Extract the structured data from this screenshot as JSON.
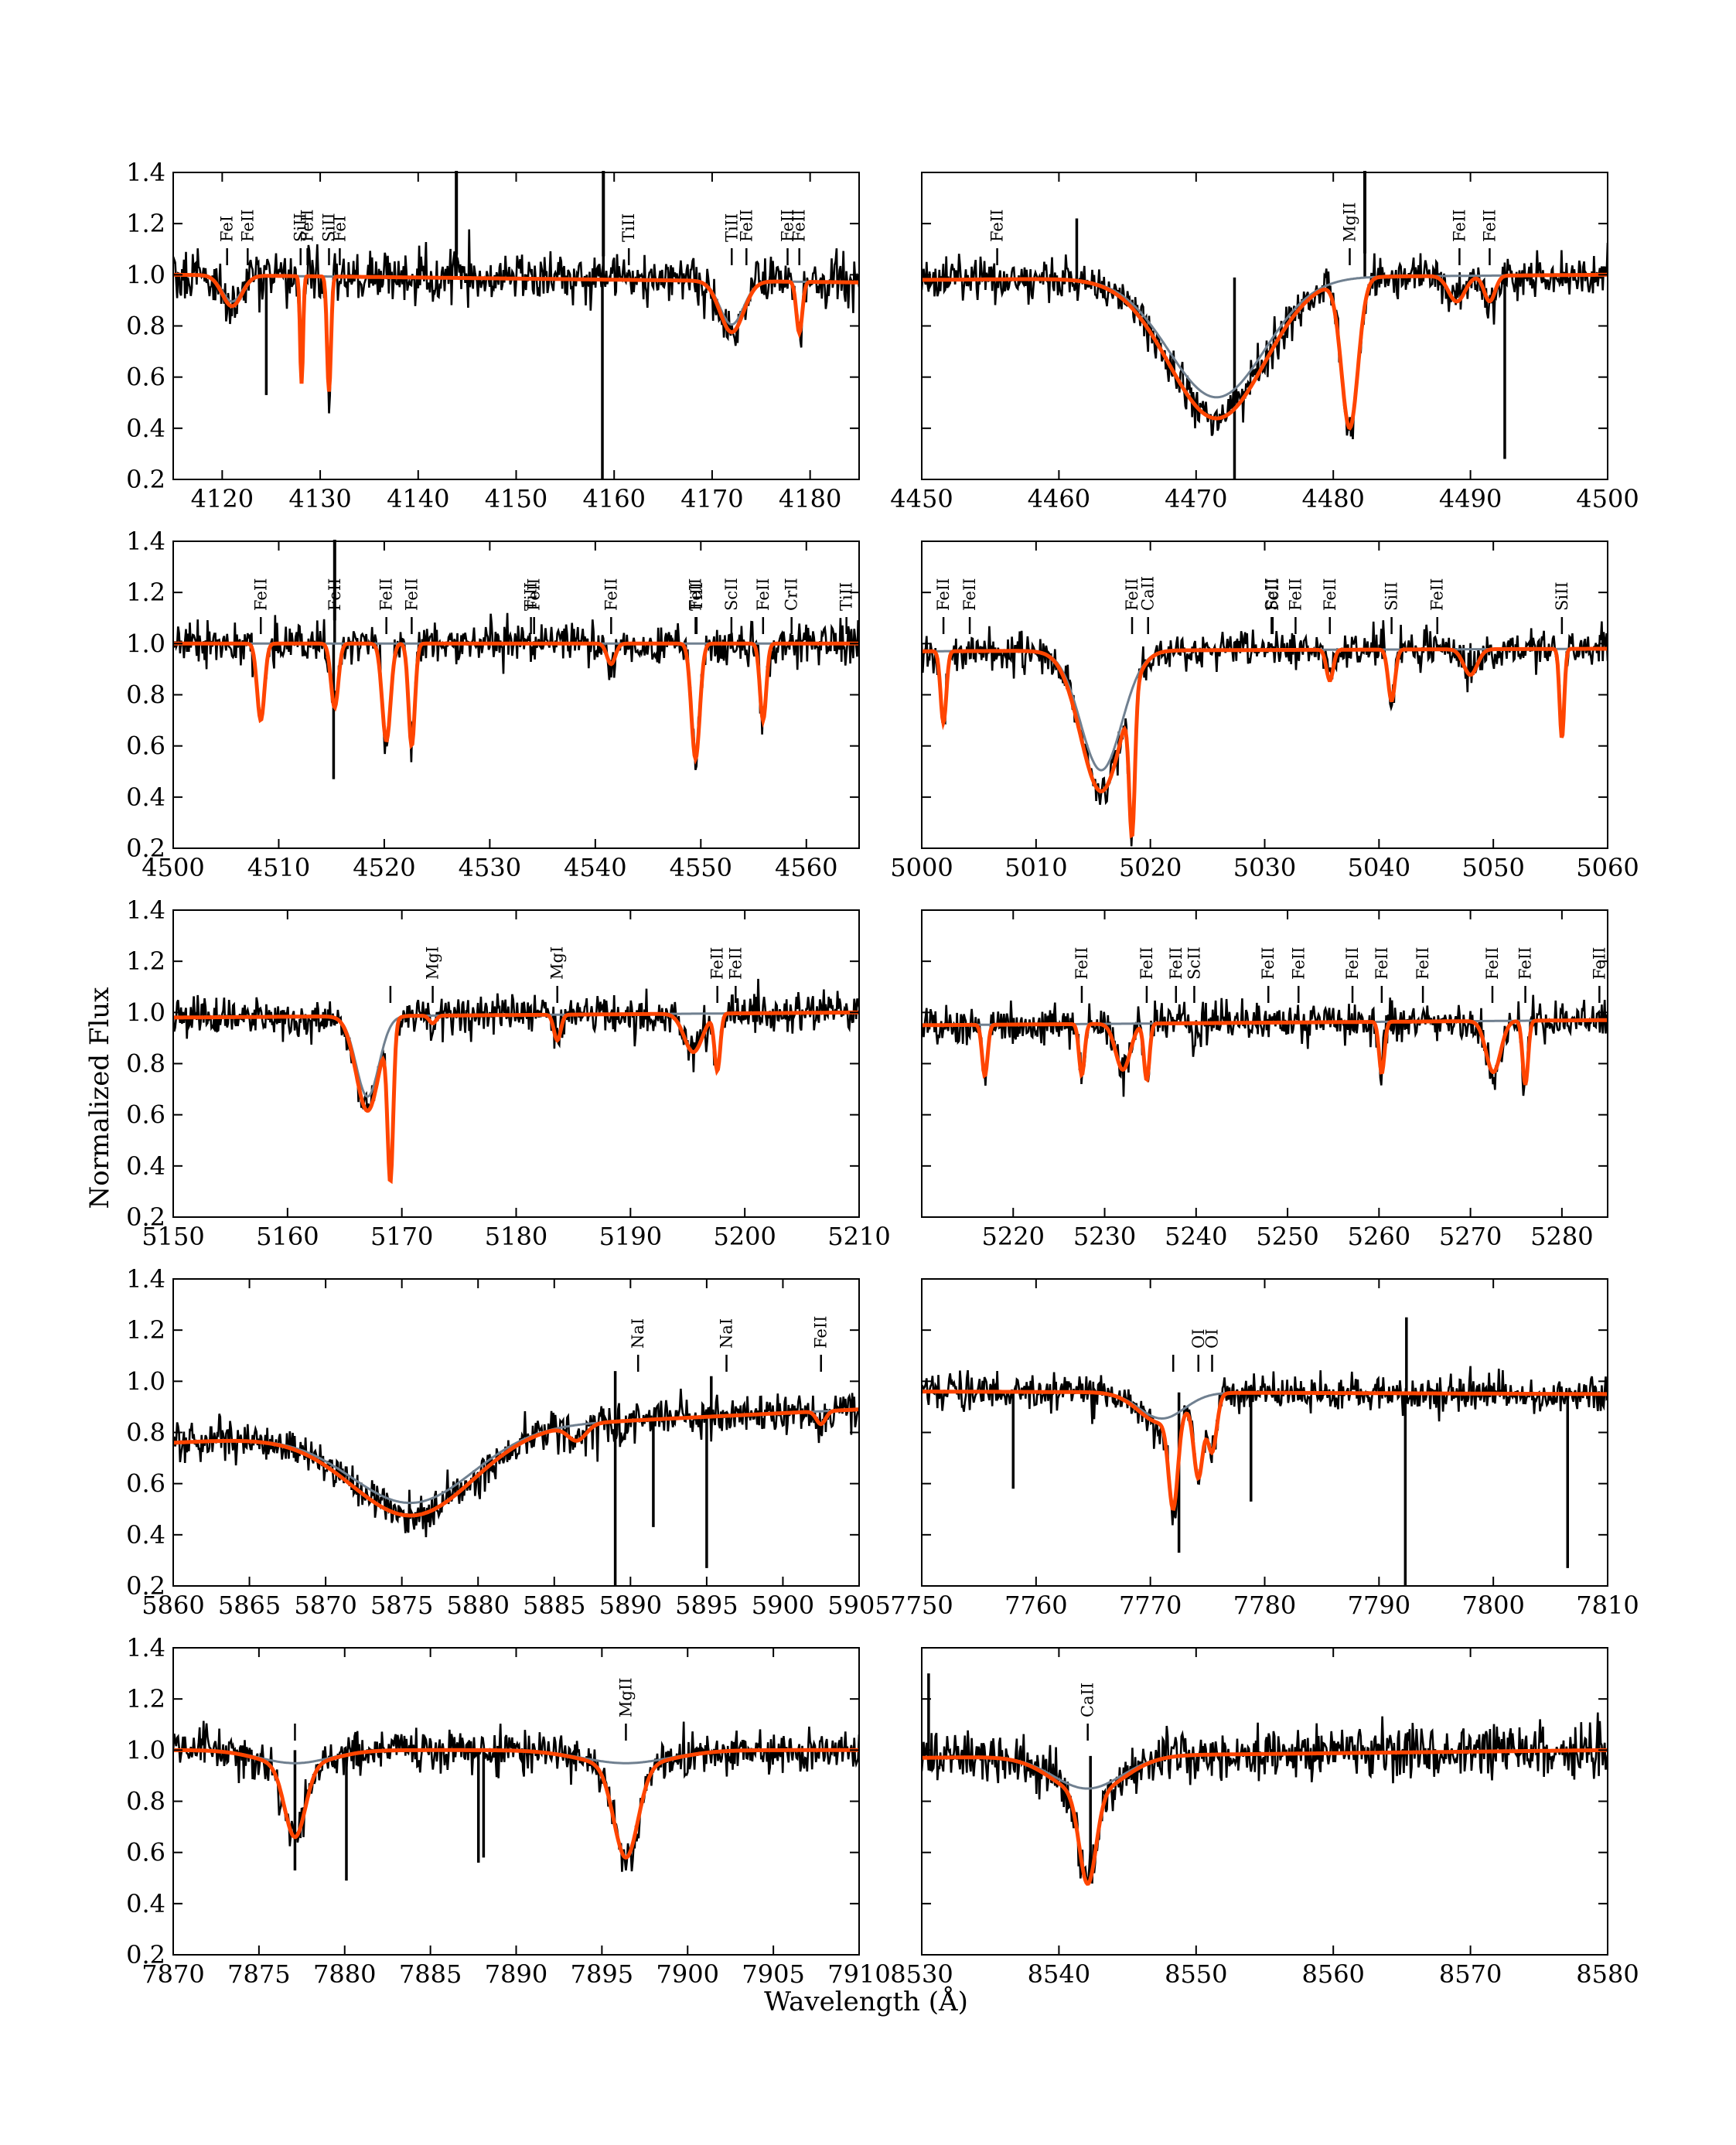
{
  "figure": {
    "ylabel": "Normalized Flux",
    "xlabel": "Wavelength (Å)"
  },
  "colors": {
    "observed": "#000000",
    "model_full": "#ff4500",
    "model_partial": "#708090"
  },
  "chart_data": [
    {
      "type": "line",
      "id": "p1",
      "xlim": [
        4115,
        4185
      ],
      "ylim": [
        0.2,
        1.4
      ],
      "xticks": [
        4120,
        4130,
        4140,
        4150,
        4160,
        4170,
        4180
      ],
      "yticks": [
        0.2,
        0.4,
        0.6,
        0.8,
        1.0,
        1.2,
        1.4
      ],
      "ytick_labels_shown": true,
      "noise": 0.05,
      "continuum": [
        1.0,
        0.97
      ],
      "features": [
        {
          "c": 4121,
          "d": 0.12,
          "w": 1.0
        },
        {
          "c": 4128.1,
          "d": 0.42,
          "w": 0.15
        },
        {
          "c": 4130.9,
          "d": 0.45,
          "w": 0.2
        },
        {
          "c": 4172,
          "d": 0.2,
          "w": 1.2
        },
        {
          "c": 4178.9,
          "d": 0.2,
          "w": 0.3
        }
      ],
      "spikes": [
        {
          "x": 4143.9,
          "y": 1.85
        },
        {
          "x": 4158.8,
          "y": 0.05
        },
        {
          "x": 4158.9,
          "y": 1.85
        },
        {
          "x": 4124.5,
          "y": 0.53
        }
      ],
      "lines": [
        {
          "x": 4120.5,
          "label": "FeI"
        },
        {
          "x": 4122.6,
          "label": "FeII"
        },
        {
          "x": 4128.0,
          "label": "SiII"
        },
        {
          "x": 4128.7,
          "label": "FeII"
        },
        {
          "x": 4130.9,
          "label": "SiII"
        },
        {
          "x": 4132.0,
          "label": "FeI"
        },
        {
          "x": 4161.5,
          "label": "TiII"
        },
        {
          "x": 4172.0,
          "label": "TiII"
        },
        {
          "x": 4173.5,
          "label": "FeII"
        },
        {
          "x": 4177.7,
          "label": "FeII"
        },
        {
          "x": 4178.9,
          "label": "FeII"
        }
      ]
    },
    {
      "type": "line",
      "id": "p2",
      "xlim": [
        4450,
        4500
      ],
      "ylim": [
        0.2,
        1.4
      ],
      "xticks": [
        4450,
        4460,
        4470,
        4480,
        4490,
        4500
      ],
      "yticks": [
        0.2,
        0.4,
        0.6,
        0.8,
        1.0,
        1.2,
        1.4
      ],
      "ytick_labels_shown": false,
      "noise": 0.04,
      "continuum": [
        0.98,
        1.0
      ],
      "features": [
        {
          "c": 4471.5,
          "d": 0.55,
          "w": 3.5
        },
        {
          "c": 4481.2,
          "d": 0.58,
          "w": 0.6
        },
        {
          "c": 4489,
          "d": 0.1,
          "w": 0.6
        },
        {
          "c": 4491.4,
          "d": 0.1,
          "w": 0.4
        }
      ],
      "spikes": [
        {
          "x": 4461.3,
          "y": 1.22
        },
        {
          "x": 4472.8,
          "y": 0.2
        },
        {
          "x": 4482.3,
          "y": 1.6
        },
        {
          "x": 4492.5,
          "y": 0.28
        }
      ],
      "lines": [
        {
          "x": 4455.5,
          "label": "FeII"
        },
        {
          "x": 4481.2,
          "label": "MgII"
        },
        {
          "x": 4489.2,
          "label": "FeII"
        },
        {
          "x": 4491.4,
          "label": "FeII"
        }
      ]
    },
    {
      "type": "line",
      "id": "p3",
      "xlim": [
        4500,
        4565
      ],
      "ylim": [
        0.2,
        1.4
      ],
      "xticks": [
        4500,
        4510,
        4520,
        4530,
        4540,
        4550,
        4560
      ],
      "yticks": [
        0.2,
        0.4,
        0.6,
        0.8,
        1.0,
        1.2,
        1.4
      ],
      "ytick_labels_shown": true,
      "noise": 0.04,
      "continuum": [
        1.0,
        1.0
      ],
      "features": [
        {
          "c": 4508.3,
          "d": 0.3,
          "w": 0.35
        },
        {
          "c": 4515.3,
          "d": 0.25,
          "w": 0.35
        },
        {
          "c": 4520.2,
          "d": 0.38,
          "w": 0.4
        },
        {
          "c": 4522.6,
          "d": 0.4,
          "w": 0.3
        },
        {
          "c": 4541.5,
          "d": 0.08,
          "w": 0.4
        },
        {
          "c": 4549.5,
          "d": 0.45,
          "w": 0.4
        },
        {
          "c": 4555.9,
          "d": 0.3,
          "w": 0.3
        }
      ],
      "spikes": [
        {
          "x": 4515.2,
          "y": 0.47
        },
        {
          "x": 4515.3,
          "y": 1.5
        }
      ],
      "lines": [
        {
          "x": 4508.3,
          "label": "FeII"
        },
        {
          "x": 4515.3,
          "label": "FeII"
        },
        {
          "x": 4520.2,
          "label": "FeII"
        },
        {
          "x": 4522.6,
          "label": "FeII"
        },
        {
          "x": 4533.9,
          "label": "TiII"
        },
        {
          "x": 4534.2,
          "label": "FeII"
        },
        {
          "x": 4541.5,
          "label": "FeII"
        },
        {
          "x": 4549.5,
          "label": "FeII"
        },
        {
          "x": 4549.6,
          "label": "TiII"
        },
        {
          "x": 4552.9,
          "label": "ScII"
        },
        {
          "x": 4555.9,
          "label": "FeII"
        },
        {
          "x": 4558.6,
          "label": "CrII"
        },
        {
          "x": 4563.8,
          "label": "TiII"
        }
      ]
    },
    {
      "type": "line",
      "id": "p4",
      "xlim": [
        5000,
        5060
      ],
      "ylim": [
        0.2,
        1.4
      ],
      "xticks": [
        5000,
        5010,
        5020,
        5030,
        5040,
        5050,
        5060
      ],
      "yticks": [
        0.2,
        0.4,
        0.6,
        0.8,
        1.0,
        1.2,
        1.4
      ],
      "ytick_labels_shown": false,
      "noise": 0.035,
      "continuum": [
        0.97,
        0.98
      ],
      "features": [
        {
          "c": 5001.9,
          "d": 0.28,
          "w": 0.25
        },
        {
          "c": 5015.7,
          "d": 0.55,
          "w": 1.8
        },
        {
          "c": 5018.4,
          "d": 0.55,
          "w": 0.25
        },
        {
          "c": 5035.7,
          "d": 0.12,
          "w": 0.3
        },
        {
          "c": 5041.1,
          "d": 0.2,
          "w": 0.3
        },
        {
          "c": 5048,
          "d": 0.1,
          "w": 0.6
        },
        {
          "c": 5056.0,
          "d": 0.35,
          "w": 0.2
        }
      ],
      "spikes": [],
      "lines": [
        {
          "x": 5001.9,
          "label": "FeII"
        },
        {
          "x": 5004.2,
          "label": "FeII"
        },
        {
          "x": 5018.4,
          "label": "FeII"
        },
        {
          "x": 5019.8,
          "label": "CaII"
        },
        {
          "x": 5030.6,
          "label": "ScII"
        },
        {
          "x": 5030.7,
          "label": "FeII"
        },
        {
          "x": 5032.7,
          "label": "FeII"
        },
        {
          "x": 5035.7,
          "label": "FeII"
        },
        {
          "x": 5041.1,
          "label": "SiII"
        },
        {
          "x": 5045.1,
          "label": "FeII"
        },
        {
          "x": 5056.0,
          "label": "SiII"
        }
      ]
    },
    {
      "type": "line",
      "id": "p5",
      "xlim": [
        5150,
        5210
      ],
      "ylim": [
        0.2,
        1.4
      ],
      "xticks": [
        5150,
        5160,
        5170,
        5180,
        5190,
        5200,
        5210
      ],
      "yticks": [
        0.2,
        0.4,
        0.6,
        0.8,
        1.0,
        1.2,
        1.4
      ],
      "ytick_labels_shown": true,
      "noise": 0.04,
      "continuum": [
        0.98,
        1.0
      ],
      "features": [
        {
          "c": 5167,
          "d": 0.37,
          "w": 1.0
        },
        {
          "c": 5169.0,
          "d": 0.6,
          "w": 0.25
        },
        {
          "c": 5172.7,
          "d": 0.03,
          "w": 0.3
        },
        {
          "c": 5183.6,
          "d": 0.1,
          "w": 0.3
        },
        {
          "c": 5195.5,
          "d": 0.15,
          "w": 0.8
        },
        {
          "c": 5197.6,
          "d": 0.22,
          "w": 0.25
        }
      ],
      "spikes": [],
      "lines": [
        {
          "x": 5169.0,
          "label": ""
        },
        {
          "x": 5172.7,
          "label": "MgI"
        },
        {
          "x": 5183.6,
          "label": "MgI"
        },
        {
          "x": 5197.6,
          "label": "FeII"
        },
        {
          "x": 5199.2,
          "label": "FeII"
        }
      ]
    },
    {
      "type": "line",
      "id": "p6",
      "xlim": [
        5210,
        5285
      ],
      "ylim": [
        0.2,
        1.4
      ],
      "xticks": [
        5220,
        5230,
        5240,
        5250,
        5260,
        5270,
        5280
      ],
      "yticks": [
        0.2,
        0.4,
        0.6,
        0.8,
        1.0,
        1.2,
        1.4
      ],
      "ytick_labels_shown": false,
      "noise": 0.04,
      "continuum": [
        0.95,
        0.97
      ],
      "features": [
        {
          "c": 5216.9,
          "d": 0.2,
          "w": 0.3
        },
        {
          "c": 5227.5,
          "d": 0.2,
          "w": 0.3
        },
        {
          "c": 5232,
          "d": 0.18,
          "w": 0.8
        },
        {
          "c": 5234.6,
          "d": 0.22,
          "w": 0.3
        },
        {
          "c": 5260.3,
          "d": 0.2,
          "w": 0.3
        },
        {
          "c": 5272.5,
          "d": 0.2,
          "w": 0.8
        },
        {
          "c": 5276.0,
          "d": 0.25,
          "w": 0.3
        }
      ],
      "spikes": [],
      "lines": [
        {
          "x": 5227.5,
          "label": "FeII"
        },
        {
          "x": 5234.6,
          "label": "FeII"
        },
        {
          "x": 5237.8,
          "label": "FeII"
        },
        {
          "x": 5239.8,
          "label": "ScII"
        },
        {
          "x": 5247.9,
          "label": "FeII"
        },
        {
          "x": 5251.2,
          "label": "FeII"
        },
        {
          "x": 5257.1,
          "label": "FeII"
        },
        {
          "x": 5260.3,
          "label": "FeII"
        },
        {
          "x": 5264.8,
          "label": "FeII"
        },
        {
          "x": 5272.4,
          "label": "FeII"
        },
        {
          "x": 5276.0,
          "label": "FeII"
        },
        {
          "x": 5284.1,
          "label": "FeII"
        }
      ]
    },
    {
      "type": "line",
      "id": "p7",
      "xlim": [
        5860,
        5905
      ],
      "ylim": [
        0.2,
        1.4
      ],
      "xticks": [
        5860,
        5865,
        5870,
        5875,
        5880,
        5885,
        5890,
        5895,
        5900,
        5905
      ],
      "yticks": [
        0.2,
        0.4,
        0.6,
        0.8,
        1.0,
        1.2,
        1.4
      ],
      "ytick_labels_shown": true,
      "noise": 0.04,
      "continuum": [
        0.76,
        0.89
      ],
      "features": [
        {
          "c": 5875.7,
          "d": 0.33,
          "w": 4.0
        },
        {
          "c": 5886.5,
          "d": 0.06,
          "w": 0.6
        },
        {
          "c": 5902.5,
          "d": 0.05,
          "w": 0.3
        }
      ],
      "spikes": [
        {
          "x": 5889.0,
          "y": 0.2
        },
        {
          "x": 5889.0,
          "y": 1.04
        },
        {
          "x": 5891.5,
          "y": 0.43
        },
        {
          "x": 5895.0,
          "y": 0.27
        },
        {
          "x": 5895.3,
          "y": 1.02
        }
      ],
      "lines": [
        {
          "x": 5890.5,
          "label": "NaI"
        },
        {
          "x": 5896.3,
          "label": "NaI"
        },
        {
          "x": 5902.5,
          "label": "FeII"
        }
      ]
    },
    {
      "type": "line",
      "id": "p8",
      "xlim": [
        7750,
        7810
      ],
      "ylim": [
        0.2,
        1.4
      ],
      "xticks": [
        7750,
        7760,
        7770,
        7780,
        7790,
        7800,
        7810
      ],
      "yticks": [
        0.2,
        0.4,
        0.6,
        0.8,
        1.0,
        1.2,
        1.4
      ],
      "ytick_labels_shown": false,
      "noise": 0.035,
      "continuum": [
        0.96,
        0.95
      ],
      "features": [
        {
          "c": 7772,
          "d": 0.35,
          "w": 0.4
        },
        {
          "c": 7774.2,
          "d": 0.3,
          "w": 0.4
        },
        {
          "c": 7775.4,
          "d": 0.22,
          "w": 0.4
        },
        {
          "c": 7771,
          "d": 0.12,
          "w": 2.0
        }
      ],
      "spikes": [
        {
          "x": 7758,
          "y": 0.58
        },
        {
          "x": 7772.5,
          "y": 0.33
        },
        {
          "x": 7778.8,
          "y": 0.53
        },
        {
          "x": 7792.3,
          "y": 0.2
        },
        {
          "x": 7792.4,
          "y": 1.25
        },
        {
          "x": 7806.5,
          "y": 0.27
        }
      ],
      "lines": [
        {
          "x": 7772.0,
          "label": ""
        },
        {
          "x": 7774.2,
          "label": "OI"
        },
        {
          "x": 7775.4,
          "label": "OI"
        }
      ]
    },
    {
      "type": "line",
      "id": "p9",
      "xlim": [
        7870,
        7910
      ],
      "ylim": [
        0.2,
        1.4
      ],
      "xticks": [
        7870,
        7875,
        7880,
        7885,
        7890,
        7895,
        7900,
        7905,
        7910
      ],
      "yticks": [
        0.2,
        0.4,
        0.6,
        0.8,
        1.0,
        1.2,
        1.4
      ],
      "ytick_labels_shown": true,
      "noise": 0.04,
      "continuum": [
        1.0,
        1.0
      ],
      "features": [
        {
          "c": 7877.1,
          "d": 0.28,
          "w": 0.6
        },
        {
          "c": 7896.4,
          "d": 0.36,
          "w": 0.7
        },
        {
          "c": 7877.1,
          "d": 0.06,
          "w": 2.0
        },
        {
          "c": 7896.4,
          "d": 0.06,
          "w": 2.5
        }
      ],
      "spikes": [
        {
          "x": 7877.1,
          "y": 0.53
        },
        {
          "x": 7880.1,
          "y": 0.49
        },
        {
          "x": 7887.8,
          "y": 0.56
        },
        {
          "x": 7888.1,
          "y": 0.58
        }
      ],
      "lines": [
        {
          "x": 7877.1,
          "label": ""
        },
        {
          "x": 7896.4,
          "label": "MgII"
        }
      ]
    },
    {
      "type": "line",
      "id": "p10",
      "xlim": [
        8530,
        8580
      ],
      "ylim": [
        0.2,
        1.4
      ],
      "xticks": [
        8530,
        8540,
        8550,
        8560,
        8570,
        8580
      ],
      "yticks": [
        0.2,
        0.4,
        0.6,
        0.8,
        1.0,
        1.2,
        1.4
      ],
      "ytick_labels_shown": false,
      "noise": 0.05,
      "continuum": [
        0.97,
        1.0
      ],
      "features": [
        {
          "c": 8542.1,
          "d": 0.35,
          "w": 0.6
        },
        {
          "c": 8542.1,
          "d": 0.15,
          "w": 2.5
        }
      ],
      "spikes": [
        {
          "x": 8530.5,
          "y": 1.3
        },
        {
          "x": 8542.3,
          "y": 0.49
        }
      ],
      "lines": [
        {
          "x": 8542.1,
          "label": "CaII"
        }
      ]
    }
  ]
}
